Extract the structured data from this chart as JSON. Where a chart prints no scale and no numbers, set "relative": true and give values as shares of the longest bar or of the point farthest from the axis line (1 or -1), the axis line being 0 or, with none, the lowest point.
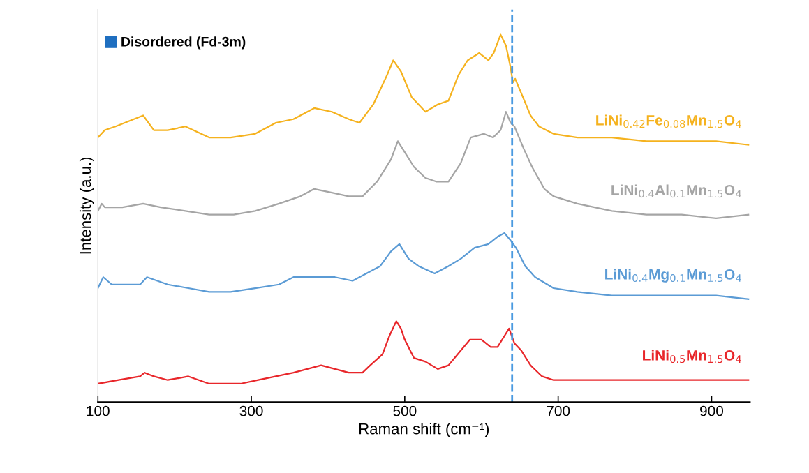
{
  "chart_data": {
    "type": "line",
    "relative": true,
    "xlabel": "Raman shift (cm⁻¹)",
    "ylabel": "Intensity (a.u.)",
    "xlim": [
      100,
      950
    ],
    "xticks": [
      100,
      300,
      500,
      700,
      900
    ],
    "grid": false,
    "annotations": [
      "Disordered (Fd-3m)"
    ],
    "marker": "none",
    "line_style": "solid",
    "tick_labels": "x",
    "ref_lines": [
      {
        "axis": "x",
        "value": 640,
        "color": "#4a9ae0",
        "line_style": "dashed"
      }
    ],
    "series": [
      {
        "name": "LiNi$_{0.42}$Fe$_{0.08}$Mn$_{1.5}$O$_{4}$",
        "color": "#f5b21e",
        "x": [
          100,
          109,
          123,
          159,
          173,
          191,
          214,
          245,
          273,
          305,
          332,
          355,
          382,
          405,
          427,
          441,
          459,
          477,
          485,
          495,
          509,
          527,
          543,
          557,
          570,
          582,
          597,
          609,
          616,
          625,
          632,
          638,
          641,
          644,
          652,
          664,
          675,
          694,
          725,
          770,
          815,
          861,
          906,
          948
        ],
        "values": [
          0.72,
          0.74,
          0.75,
          0.78,
          0.74,
          0.74,
          0.75,
          0.72,
          0.72,
          0.73,
          0.76,
          0.77,
          0.8,
          0.79,
          0.77,
          0.76,
          0.81,
          0.89,
          0.93,
          0.9,
          0.83,
          0.79,
          0.81,
          0.82,
          0.89,
          0.93,
          0.95,
          0.93,
          0.95,
          1.0,
          0.97,
          0.91,
          0.87,
          0.88,
          0.84,
          0.78,
          0.75,
          0.73,
          0.72,
          0.72,
          0.71,
          0.71,
          0.71,
          0.7
        ]
      },
      {
        "name": "LiNi$_{0.4}$Al$_{0.1}$Mn$_{1.5}$O$_{4}$",
        "color": "#a5a5a5",
        "x": [
          100,
          105,
          109,
          132,
          159,
          182,
          214,
          245,
          277,
          305,
          336,
          364,
          382,
          405,
          427,
          445,
          464,
          482,
          491,
          500,
          512,
          527,
          541,
          557,
          573,
          586,
          603,
          615,
          625,
          632,
          638,
          643,
          655,
          666,
          682,
          694,
          725,
          770,
          815,
          861,
          906,
          948
        ],
        "values": [
          0.52,
          0.54,
          0.53,
          0.53,
          0.54,
          0.53,
          0.52,
          0.51,
          0.51,
          0.52,
          0.54,
          0.56,
          0.58,
          0.57,
          0.56,
          0.56,
          0.6,
          0.66,
          0.71,
          0.68,
          0.64,
          0.61,
          0.6,
          0.6,
          0.65,
          0.72,
          0.73,
          0.72,
          0.74,
          0.79,
          0.76,
          0.75,
          0.69,
          0.64,
          0.58,
          0.56,
          0.54,
          0.52,
          0.51,
          0.51,
          0.5,
          0.51
        ]
      },
      {
        "name": "LiNi$_{0.4}$Mg$_{0.1}$Mn$_{1.5}$O$_{4}$",
        "color": "#5b9bd5",
        "x": [
          100,
          107,
          118,
          155,
          164,
          191,
          218,
          245,
          273,
          305,
          336,
          355,
          382,
          409,
          432,
          450,
          468,
          482,
          493,
          505,
          518,
          539,
          557,
          573,
          591,
          609,
          621,
          630,
          638,
          645,
          657,
          670,
          694,
          725,
          770,
          815,
          861,
          906,
          948
        ],
        "values": [
          0.31,
          0.34,
          0.32,
          0.32,
          0.34,
          0.32,
          0.31,
          0.3,
          0.3,
          0.31,
          0.32,
          0.34,
          0.34,
          0.34,
          0.33,
          0.35,
          0.37,
          0.41,
          0.43,
          0.39,
          0.37,
          0.35,
          0.37,
          0.39,
          0.42,
          0.43,
          0.45,
          0.46,
          0.44,
          0.42,
          0.37,
          0.34,
          0.31,
          0.3,
          0.29,
          0.29,
          0.29,
          0.29,
          0.28
        ]
      },
      {
        "name": "LiNi$_{0.5}$Mn$_{1.5}$O$_{4}$",
        "color": "#e8262a",
        "x": [
          100,
          127,
          155,
          161,
          173,
          191,
          218,
          245,
          264,
          286,
          309,
          332,
          355,
          373,
          391,
          409,
          427,
          445,
          455,
          471,
          480,
          489,
          495,
          500,
          512,
          527,
          543,
          557,
          573,
          585,
          600,
          612,
          621,
          630,
          636,
          643,
          652,
          664,
          679,
          694,
          739,
          785,
          845,
          906,
          948
        ],
        "values": [
          0.05,
          0.06,
          0.07,
          0.08,
          0.07,
          0.06,
          0.07,
          0.05,
          0.05,
          0.05,
          0.06,
          0.07,
          0.08,
          0.09,
          0.1,
          0.09,
          0.08,
          0.08,
          0.1,
          0.13,
          0.18,
          0.22,
          0.2,
          0.17,
          0.12,
          0.11,
          0.09,
          0.1,
          0.14,
          0.17,
          0.17,
          0.15,
          0.15,
          0.18,
          0.2,
          0.16,
          0.14,
          0.1,
          0.07,
          0.06,
          0.06,
          0.06,
          0.06,
          0.06,
          0.06
        ]
      }
    ]
  }
}
